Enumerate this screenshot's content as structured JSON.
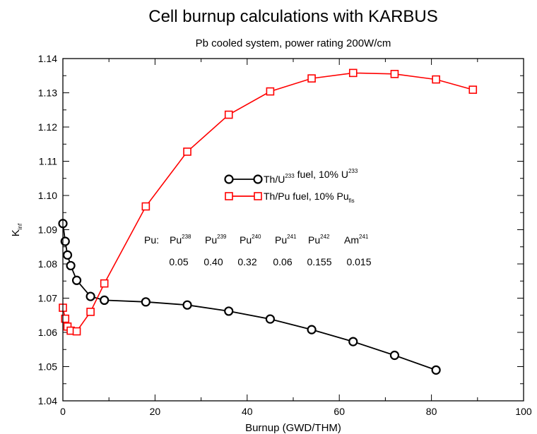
{
  "chart_data": {
    "type": "line",
    "title": "Cell burnup calculations with KARBUS",
    "subtitle": "Pb cooled system, power rating 200W/cm",
    "xlabel": "Burnup (GWD/THM)",
    "ylabel": {
      "main": "K",
      "sub": "inf"
    },
    "xlim": [
      0,
      100
    ],
    "ylim": [
      1.04,
      1.14
    ],
    "xticks": [
      0,
      20,
      40,
      60,
      80,
      100
    ],
    "yticks": [
      1.04,
      1.05,
      1.06,
      1.07,
      1.08,
      1.09,
      1.1,
      1.11,
      1.12,
      1.13,
      1.14
    ],
    "ytick_labels": [
      "1.04",
      "1.05",
      "1.06",
      "1.07",
      "1.08",
      "1.09",
      "1.10",
      "1.11",
      "1.12",
      "1.13",
      "1.14"
    ],
    "grid": false,
    "legend_position": "center",
    "series": [
      {
        "name": "Th/U233 fuel, 10% U233",
        "legend_parts": [
          {
            "t": "Th/U"
          },
          {
            "t": "233",
            "sup": true
          },
          {
            "t": " fuel, 10% U"
          },
          {
            "t": "233",
            "sup": true
          }
        ],
        "color": "#000000",
        "marker": "circle",
        "x": [
          0,
          0.5,
          1,
          1.7,
          3,
          6,
          9,
          18,
          27,
          36,
          45,
          54,
          63,
          72,
          81
        ],
        "y": [
          1.0918,
          1.0866,
          1.0826,
          1.0795,
          1.0752,
          1.0705,
          1.0694,
          1.0689,
          1.068,
          1.0662,
          1.0639,
          1.0608,
          1.0573,
          1.0533,
          1.049
        ]
      },
      {
        "name": "Th/Pu fuel, 10% Pu fis",
        "legend_parts": [
          {
            "t": "Th/Pu fuel, 10% Pu"
          },
          {
            "t": "fis",
            "sub": true
          }
        ],
        "color": "#ff0000",
        "marker": "square",
        "x": [
          0,
          0.5,
          1,
          1.7,
          3,
          6,
          9,
          18,
          27,
          36,
          45,
          54,
          63,
          72,
          81,
          89
        ],
        "y": [
          1.0672,
          1.064,
          1.0617,
          1.0605,
          1.0603,
          1.066,
          1.0743,
          1.0968,
          1.1128,
          1.1236,
          1.1304,
          1.1342,
          1.1358,
          1.1355,
          1.1339,
          1.1309
        ]
      }
    ],
    "annotation": {
      "prefix": "Pu:",
      "isotopes": [
        {
          "name": "Pu",
          "mass": "238",
          "fraction": "0.05"
        },
        {
          "name": "Pu",
          "mass": "239",
          "fraction": "0.40"
        },
        {
          "name": "Pu",
          "mass": "240",
          "fraction": "0.32"
        },
        {
          "name": "Pu",
          "mass": "241",
          "fraction": "0.06"
        },
        {
          "name": "Pu",
          "mass": "242",
          "fraction": "0.155"
        },
        {
          "name": "Am",
          "mass": "241",
          "fraction": "0.015"
        }
      ]
    }
  }
}
